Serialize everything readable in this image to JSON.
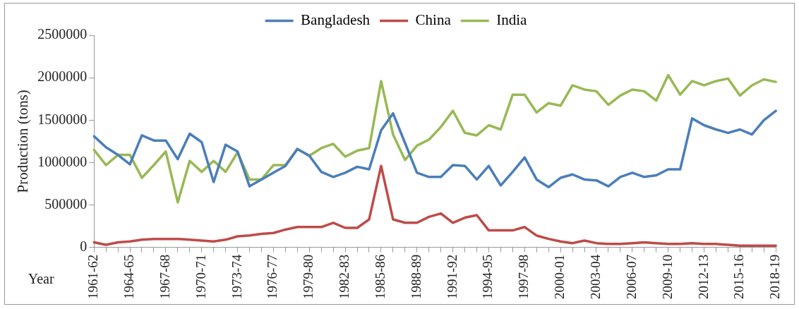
{
  "chart_data": {
    "type": "line",
    "ylabel": "Production (tons)",
    "xlabel": "Year",
    "categories": [
      "1961-62",
      null,
      null,
      "1964-65",
      null,
      null,
      "1967-68",
      null,
      null,
      "1970-71",
      null,
      null,
      "1973-74",
      null,
      null,
      "1976-77",
      null,
      null,
      "1979-80",
      null,
      null,
      "1982-83",
      null,
      null,
      "1985-86",
      null,
      null,
      "1988-89",
      null,
      null,
      "1991-92",
      null,
      null,
      "1994-95",
      null,
      null,
      "1997-98",
      null,
      null,
      "2000-01",
      null,
      null,
      "2003-04",
      null,
      null,
      "2006-07",
      null,
      null,
      "2009-10",
      null,
      null,
      "2012-13",
      null,
      null,
      "2015-16",
      null,
      null,
      "2018-19"
    ],
    "series": [
      {
        "name": "Bangladesh",
        "color": "#4a7ebb",
        "values": [
          1310000,
          1180000,
          1090000,
          980000,
          1320000,
          1260000,
          1260000,
          1040000,
          1340000,
          1240000,
          770000,
          1210000,
          1130000,
          720000,
          800000,
          880000,
          960000,
          1160000,
          1080000,
          890000,
          830000,
          880000,
          950000,
          920000,
          1380000,
          1580000,
          1230000,
          880000,
          830000,
          830000,
          970000,
          960000,
          800000,
          960000,
          730000,
          890000,
          1060000,
          800000,
          710000,
          820000,
          860000,
          800000,
          790000,
          720000,
          830000,
          880000,
          830000,
          850000,
          920000,
          920000,
          1520000,
          1440000,
          1390000,
          1350000,
          1390000,
          1330000,
          1500000,
          1610000
        ]
      },
      {
        "name": "China",
        "color": "#be4b48",
        "values": [
          60000,
          30000,
          60000,
          70000,
          90000,
          100000,
          100000,
          100000,
          90000,
          80000,
          70000,
          90000,
          130000,
          140000,
          160000,
          170000,
          210000,
          240000,
          240000,
          240000,
          290000,
          230000,
          230000,
          330000,
          960000,
          330000,
          290000,
          290000,
          360000,
          400000,
          290000,
          350000,
          380000,
          200000,
          200000,
          200000,
          240000,
          140000,
          100000,
          70000,
          50000,
          80000,
          50000,
          40000,
          40000,
          50000,
          60000,
          50000,
          40000,
          40000,
          50000,
          40000,
          40000,
          30000,
          20000,
          20000,
          20000,
          20000
        ]
      },
      {
        "name": "India",
        "color": "#98b954",
        "values": [
          1150000,
          970000,
          1090000,
          1090000,
          820000,
          970000,
          1130000,
          530000,
          1020000,
          890000,
          1020000,
          890000,
          1120000,
          800000,
          800000,
          970000,
          970000,
          1160000,
          1080000,
          1170000,
          1220000,
          1070000,
          1140000,
          1170000,
          1960000,
          1330000,
          1030000,
          1200000,
          1270000,
          1420000,
          1610000,
          1350000,
          1320000,
          1440000,
          1390000,
          1800000,
          1800000,
          1590000,
          1700000,
          1670000,
          1910000,
          1860000,
          1840000,
          1680000,
          1790000,
          1860000,
          1840000,
          1730000,
          2030000,
          1800000,
          1960000,
          1910000,
          1960000,
          1990000,
          1790000,
          1910000,
          1980000,
          1950000
        ]
      }
    ],
    "ylim": [
      0,
      2500000
    ],
    "yticks": [
      0,
      500000,
      1000000,
      1500000,
      2000000,
      2500000
    ],
    "grid": false,
    "legend": "top",
    "marker": "none",
    "line_style": "solid"
  }
}
